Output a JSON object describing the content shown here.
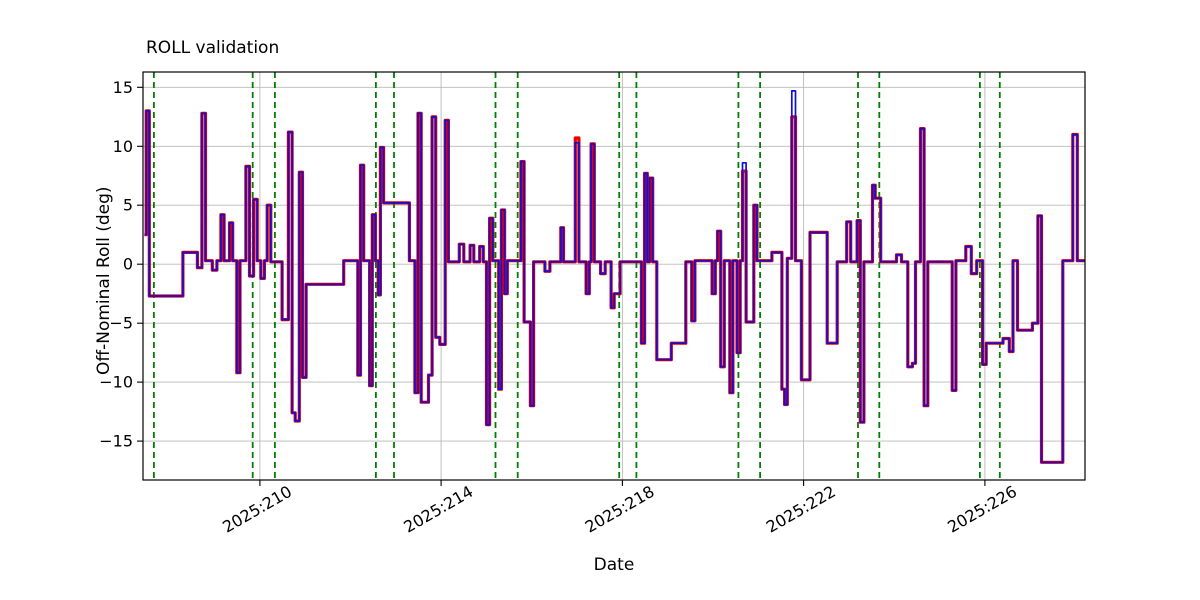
{
  "chart_data": {
    "type": "line",
    "title": "ROLL validation",
    "xlabel": "Date",
    "ylabel": "Off-Nominal Roll (deg)",
    "x_unit": "year:day-of-year (2025)",
    "xlim": [
      207.42,
      228.21
    ],
    "ylim": [
      -18.3,
      16.3
    ],
    "x_ticks": [
      210,
      214,
      218,
      222,
      226
    ],
    "x_tick_labels": [
      "2025:210",
      "2025:214",
      "2025:218",
      "2025:222",
      "2025:226"
    ],
    "y_ticks": [
      -15,
      -10,
      -5,
      0,
      5,
      10,
      15
    ],
    "y_tick_labels": [
      "−15",
      "−10",
      "−5",
      "0",
      "5",
      "10",
      "15"
    ],
    "grid": true,
    "grid_color": "#b9b9b9",
    "legend": "none",
    "series": [
      {
        "name": "roll-reference-red",
        "color": "#e60000",
        "line_width": 3.2,
        "style": "step-post"
      },
      {
        "name": "roll-validation-blue",
        "color": "#0f0fd6",
        "line_width": 1.7,
        "style": "step-post"
      }
    ],
    "steps_format": "[day_of_year, red_deg, blue_deg(optional, defaults to red)]",
    "steps": [
      [
        207.45,
        2.5
      ],
      [
        207.49,
        13.0
      ],
      [
        207.56,
        -2.7
      ],
      [
        208.3,
        1.0
      ],
      [
        208.62,
        -0.3
      ],
      [
        208.72,
        12.8
      ],
      [
        208.8,
        0.3
      ],
      [
        208.95,
        -0.5
      ],
      [
        209.05,
        0.3
      ],
      [
        209.14,
        4.2
      ],
      [
        209.21,
        0.3
      ],
      [
        209.33,
        3.5
      ],
      [
        209.4,
        0.3
      ],
      [
        209.49,
        -9.2
      ],
      [
        209.56,
        0.3
      ],
      [
        209.69,
        8.3
      ],
      [
        209.77,
        -1.0
      ],
      [
        209.86,
        5.5
      ],
      [
        209.94,
        0.3
      ],
      [
        210.02,
        -1.2
      ],
      [
        210.1,
        0.3
      ],
      [
        210.16,
        5.0
      ],
      [
        210.24,
        0.2
      ],
      [
        210.49,
        -4.7
      ],
      [
        210.63,
        11.2
      ],
      [
        210.71,
        -12.6
      ],
      [
        210.78,
        -13.3
      ],
      [
        210.87,
        7.8
      ],
      [
        210.94,
        -9.6
      ],
      [
        211.02,
        -1.7
      ],
      [
        211.85,
        0.3
      ],
      [
        212.16,
        -9.4
      ],
      [
        212.22,
        8.4
      ],
      [
        212.29,
        0.3
      ],
      [
        212.42,
        -10.3
      ],
      [
        212.48,
        4.2
      ],
      [
        212.55,
        0.3
      ],
      [
        212.61,
        -2.6
      ],
      [
        212.66,
        9.9
      ],
      [
        212.73,
        5.2
      ],
      [
        213.3,
        0.3
      ],
      [
        213.42,
        -10.9
      ],
      [
        213.49,
        12.8
      ],
      [
        213.56,
        -11.7
      ],
      [
        213.72,
        -9.4
      ],
      [
        213.8,
        12.5
      ],
      [
        213.88,
        -6.2
      ],
      [
        213.97,
        -6.8
      ],
      [
        214.09,
        12.2
      ],
      [
        214.16,
        0.2
      ],
      [
        214.4,
        1.7
      ],
      [
        214.5,
        0.2
      ],
      [
        214.64,
        1.6
      ],
      [
        214.72,
        0.2
      ],
      [
        214.85,
        1.5
      ],
      [
        214.93,
        0.2
      ],
      [
        215.0,
        -13.6
      ],
      [
        215.07,
        3.9
      ],
      [
        215.14,
        0.3
      ],
      [
        215.27,
        -10.6
      ],
      [
        215.33,
        4.6
      ],
      [
        215.4,
        -2.5
      ],
      [
        215.46,
        0.3
      ],
      [
        215.76,
        8.7
      ],
      [
        215.83,
        -4.9
      ],
      [
        215.97,
        -12.0
      ],
      [
        216.04,
        0.2
      ],
      [
        216.29,
        -0.6
      ],
      [
        216.4,
        0.2
      ],
      [
        216.64,
        3.1
      ],
      [
        216.7,
        0.2
      ],
      [
        216.96,
        10.7,
        10.3
      ],
      [
        217.04,
        0.2
      ],
      [
        217.2,
        -2.5
      ],
      [
        217.27,
        0.2
      ],
      [
        217.31,
        10.2
      ],
      [
        217.38,
        0.2
      ],
      [
        217.52,
        -0.8
      ],
      [
        217.62,
        0.2
      ],
      [
        217.75,
        -3.7
      ],
      [
        217.82,
        -2.5
      ],
      [
        217.95,
        0.2
      ],
      [
        218.42,
        -6.7
      ],
      [
        218.49,
        7.7
      ],
      [
        218.55,
        0.2
      ],
      [
        218.6,
        7.3
      ],
      [
        218.67,
        0.2
      ],
      [
        218.76,
        -8.1
      ],
      [
        219.08,
        -6.7
      ],
      [
        219.4,
        0.2
      ],
      [
        219.53,
        -4.8
      ],
      [
        219.6,
        0.3
      ],
      [
        219.98,
        -2.5
      ],
      [
        220.05,
        0.3
      ],
      [
        220.1,
        2.8
      ],
      [
        220.17,
        -8.7
      ],
      [
        220.25,
        0.3
      ],
      [
        220.37,
        -10.9
      ],
      [
        220.44,
        0.3
      ],
      [
        220.53,
        -7.5
      ],
      [
        220.6,
        0.3
      ],
      [
        220.65,
        7.9,
        8.6
      ],
      [
        220.73,
        -4.9
      ],
      [
        220.9,
        5.0
      ],
      [
        220.97,
        0.3
      ],
      [
        221.3,
        1.0
      ],
      [
        221.52,
        -10.6
      ],
      [
        221.58,
        -11.9
      ],
      [
        221.64,
        0.5
      ],
      [
        221.74,
        12.5,
        14.7
      ],
      [
        221.82,
        0.3
      ],
      [
        221.95,
        -9.8
      ],
      [
        222.14,
        2.7
      ],
      [
        222.52,
        -6.7
      ],
      [
        222.74,
        0.2
      ],
      [
        222.95,
        3.6
      ],
      [
        223.04,
        0.2
      ],
      [
        223.18,
        3.7
      ],
      [
        223.25,
        -13.4
      ],
      [
        223.33,
        0.2
      ],
      [
        223.52,
        6.7
      ],
      [
        223.58,
        5.6
      ],
      [
        223.7,
        0.2
      ],
      [
        224.05,
        0.8
      ],
      [
        224.16,
        0.2
      ],
      [
        224.3,
        -8.7
      ],
      [
        224.4,
        -8.4
      ],
      [
        224.47,
        0.2
      ],
      [
        224.58,
        11.5
      ],
      [
        224.66,
        -12.0
      ],
      [
        224.74,
        0.2
      ],
      [
        225.28,
        -10.7
      ],
      [
        225.36,
        0.3
      ],
      [
        225.58,
        1.5
      ],
      [
        225.7,
        -0.8
      ],
      [
        225.82,
        0.3
      ],
      [
        225.95,
        -8.5
      ],
      [
        226.03,
        -6.7
      ],
      [
        226.4,
        -6.3
      ],
      [
        226.54,
        -7.4
      ],
      [
        226.62,
        0.3
      ],
      [
        226.72,
        -5.6
      ],
      [
        227.05,
        -5.0
      ],
      [
        227.17,
        4.1
      ],
      [
        227.25,
        -16.8
      ],
      [
        227.72,
        0.3
      ],
      [
        227.94,
        11.0
      ],
      [
        228.04,
        0.3
      ],
      [
        228.21,
        0.3
      ]
    ],
    "event_lines": {
      "name": "green-dashed-event-lines",
      "color": "#008000",
      "style": "dashed",
      "x": [
        207.66,
        209.84,
        210.33,
        212.56,
        212.96,
        215.2,
        215.69,
        217.93,
        218.31,
        220.56,
        221.04,
        223.2,
        223.67,
        225.89,
        226.33
      ]
    }
  }
}
